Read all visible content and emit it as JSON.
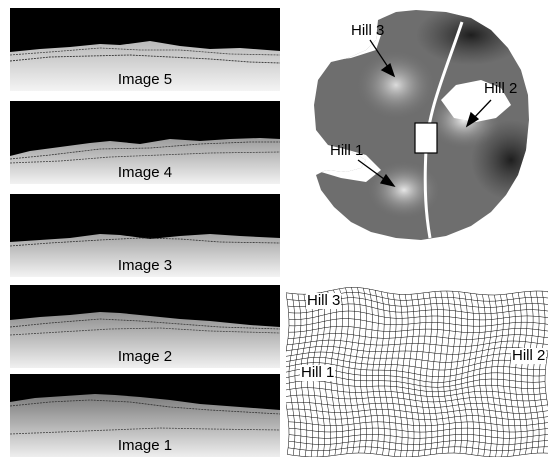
{
  "images": [
    {
      "label": "Image 5"
    },
    {
      "label": "Image 4"
    },
    {
      "label": "Image 3"
    },
    {
      "label": "Image 2"
    },
    {
      "label": "Image 1"
    }
  ],
  "map": {
    "labels": [
      "Hill 3",
      "Hill 2",
      "Hill 1"
    ]
  },
  "grid": {
    "labels": [
      "Hill 3",
      "Hill 1",
      "Hill 2"
    ]
  }
}
